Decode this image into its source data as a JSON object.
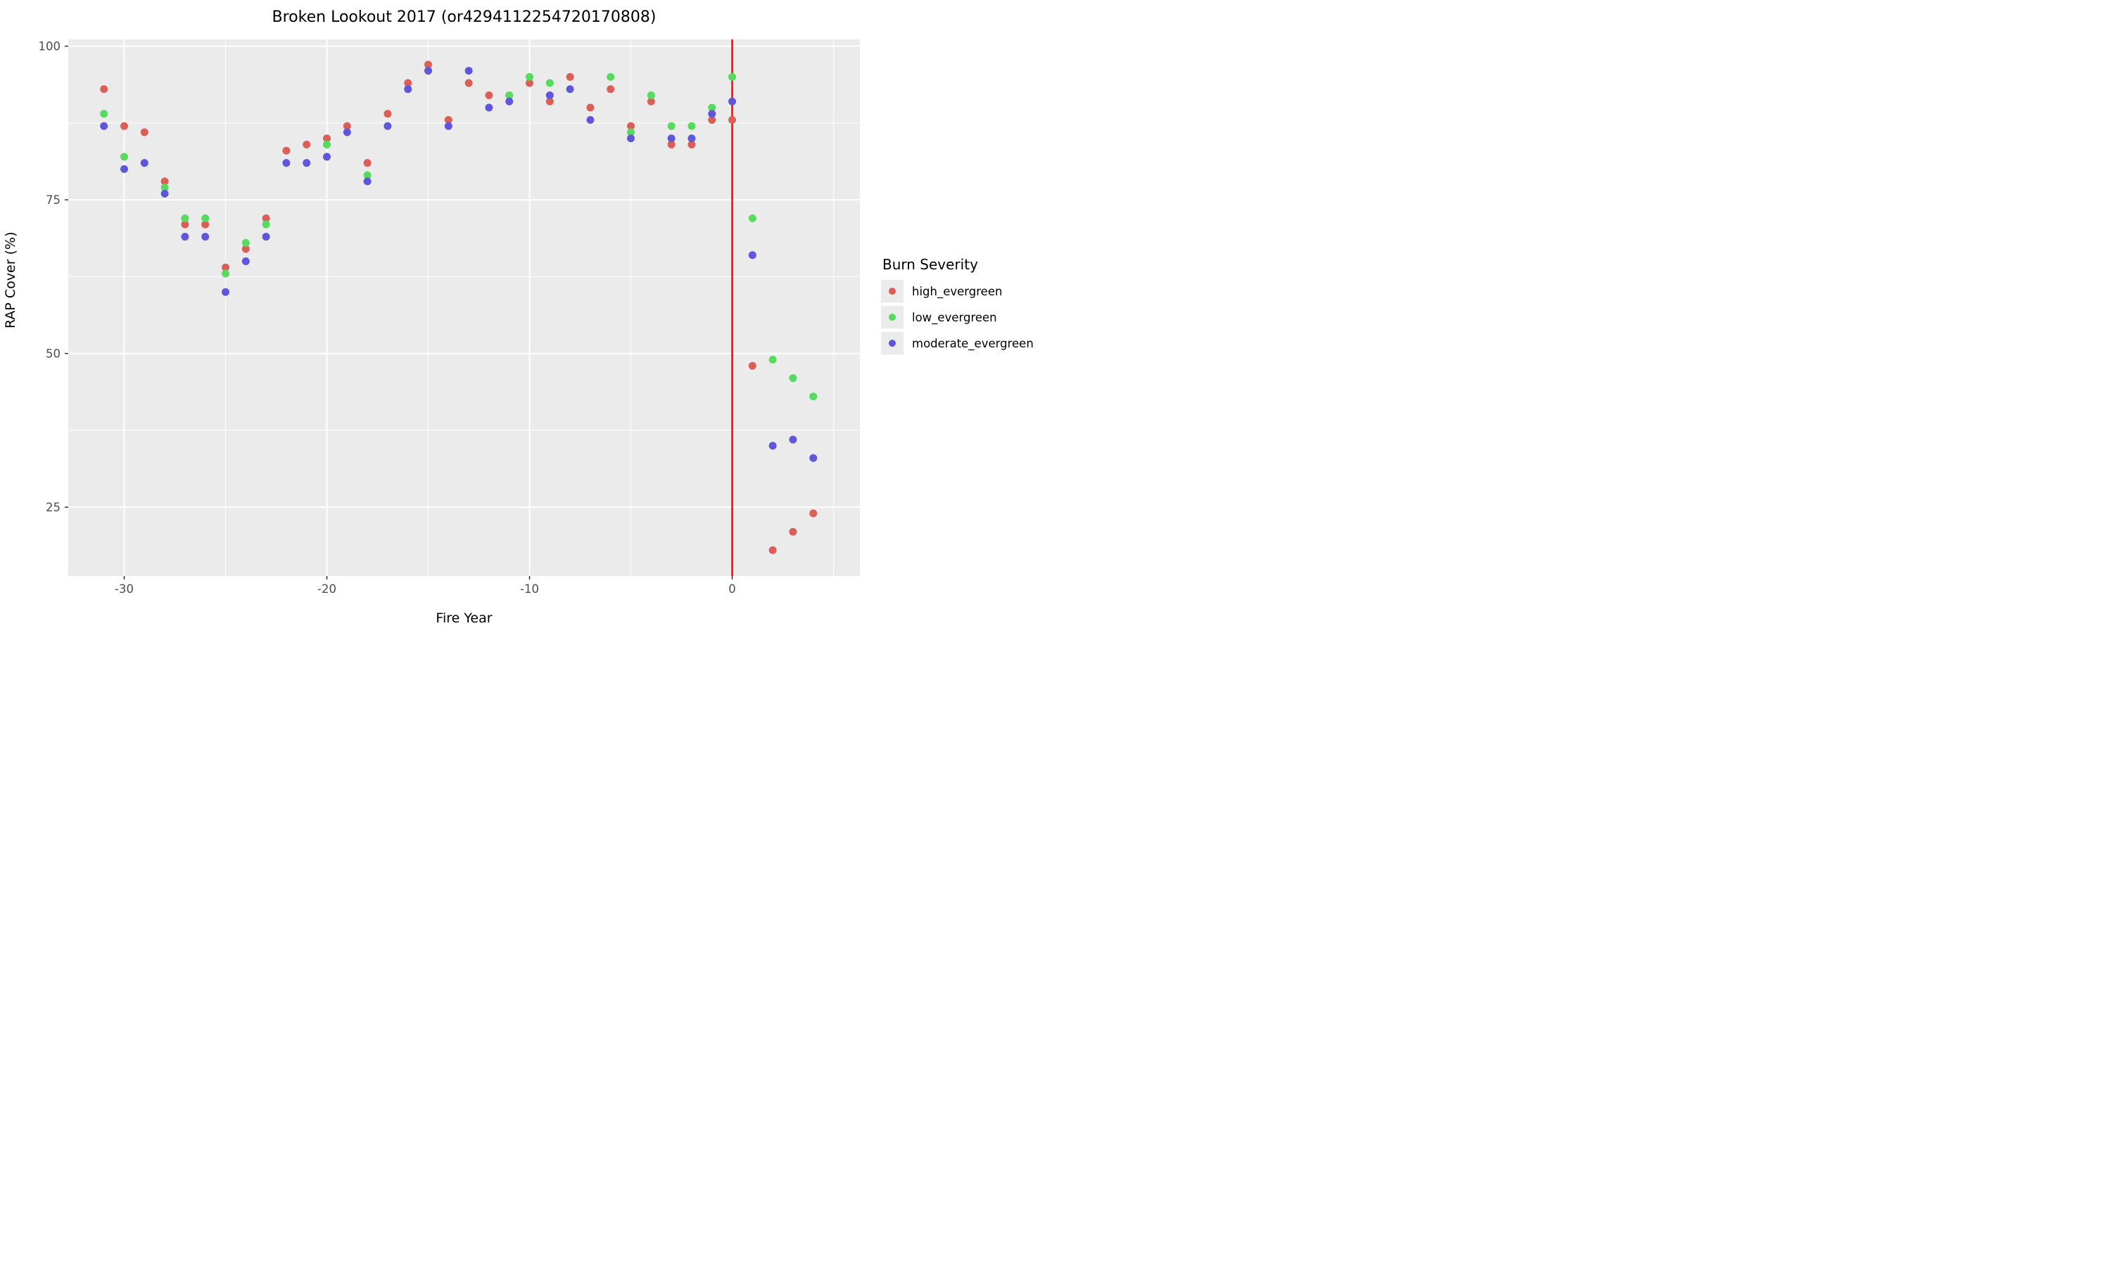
{
  "title": "Broken Lookout 2017 (or4294112254720170808)",
  "legend": {
    "title": "Burn Severity",
    "items": [
      {
        "label": "high_evergreen",
        "color": "#db5f57"
      },
      {
        "label": "low_evergreen",
        "color": "#57db5f"
      },
      {
        "label": "moderate_evergreen",
        "color": "#5f57db"
      }
    ]
  },
  "chart_data": {
    "type": "scatter",
    "title": "Broken Lookout 2017 (or4294112254720170808)",
    "xlabel": "Fire Year",
    "ylabel": "RAP Cover (%)",
    "xlim": [
      -32.76,
      6.3
    ],
    "ylim": [
      13.8,
      101.1
    ],
    "x_major_ticks": [
      -30,
      -20,
      -10,
      0
    ],
    "x_tick_labels": [
      "-30",
      "-20",
      "-10",
      "0"
    ],
    "x_minor_gridlines": [
      -25,
      -15,
      -5,
      5
    ],
    "y_major_ticks": [
      25,
      50,
      75,
      100
    ],
    "y_tick_labels": [
      "25",
      "50",
      "75",
      "100"
    ],
    "y_minor_gridlines": [
      37.5,
      62.5,
      87.5
    ],
    "grid": true,
    "legend_position": "right",
    "panel_background": "#ebebeb",
    "grid_color": "#ffffff",
    "tick_color": "#333333",
    "tick_label_color": "#4d4d4d",
    "vline": {
      "x": 0,
      "color": "#ff0000",
      "meaning": "fire year"
    },
    "series": [
      {
        "name": "high_evergreen",
        "color": "#db5f57",
        "points": [
          [
            -31,
            93
          ],
          [
            -30,
            87
          ],
          [
            -29,
            86
          ],
          [
            -28,
            78
          ],
          [
            -27,
            71
          ],
          [
            -26,
            71
          ],
          [
            -25,
            64
          ],
          [
            -24,
            67
          ],
          [
            -23,
            72
          ],
          [
            -22,
            83
          ],
          [
            -21,
            84
          ],
          [
            -20,
            85
          ],
          [
            -19,
            87
          ],
          [
            -18,
            81
          ],
          [
            -17,
            89
          ],
          [
            -16,
            94
          ],
          [
            -15,
            97
          ],
          [
            -14,
            88
          ],
          [
            -13,
            94
          ],
          [
            -12,
            92
          ],
          [
            -11,
            92
          ],
          [
            -10,
            94
          ],
          [
            -9,
            91
          ],
          [
            -8,
            95
          ],
          [
            -7,
            90
          ],
          [
            -6,
            93
          ],
          [
            -5,
            87
          ],
          [
            -4,
            91
          ],
          [
            -3,
            84
          ],
          [
            -2,
            84
          ],
          [
            -1,
            88
          ],
          [
            0,
            88
          ],
          [
            1,
            48
          ],
          [
            2,
            18
          ],
          [
            3,
            21
          ],
          [
            4,
            24
          ]
        ]
      },
      {
        "name": "low_evergreen",
        "color": "#57db5f",
        "points": [
          [
            -31,
            89
          ],
          [
            -30,
            82
          ],
          [
            -28,
            77
          ],
          [
            -27,
            72
          ],
          [
            -26,
            72
          ],
          [
            -25,
            63
          ],
          [
            -24,
            68
          ],
          [
            -23,
            71
          ],
          [
            -20,
            84
          ],
          [
            -18,
            79
          ],
          [
            -11,
            92
          ],
          [
            -10,
            95
          ],
          [
            -9,
            94
          ],
          [
            -6,
            95
          ],
          [
            -5,
            86
          ],
          [
            -4,
            92
          ],
          [
            -3,
            87
          ],
          [
            -2,
            87
          ],
          [
            -1,
            90
          ],
          [
            0,
            95
          ],
          [
            1,
            72
          ],
          [
            2,
            49
          ],
          [
            3,
            46
          ],
          [
            4,
            43
          ]
        ]
      },
      {
        "name": "moderate_evergreen",
        "color": "#5f57db",
        "points": [
          [
            -31,
            87
          ],
          [
            -30,
            80
          ],
          [
            -29,
            81
          ],
          [
            -28,
            76
          ],
          [
            -27,
            69
          ],
          [
            -26,
            69
          ],
          [
            -25,
            60
          ],
          [
            -24,
            65
          ],
          [
            -23,
            69
          ],
          [
            -22,
            81
          ],
          [
            -21,
            81
          ],
          [
            -20,
            82
          ],
          [
            -19,
            86
          ],
          [
            -18,
            78
          ],
          [
            -17,
            87
          ],
          [
            -16,
            93
          ],
          [
            -15,
            96
          ],
          [
            -14,
            87
          ],
          [
            -13,
            96
          ],
          [
            -12,
            90
          ],
          [
            -11,
            91
          ],
          [
            -9,
            92
          ],
          [
            -8,
            93
          ],
          [
            -7,
            88
          ],
          [
            -5,
            85
          ],
          [
            -3,
            85
          ],
          [
            -2,
            85
          ],
          [
            -1,
            89
          ],
          [
            0,
            91
          ],
          [
            1,
            66
          ],
          [
            2,
            35
          ],
          [
            3,
            36
          ],
          [
            4,
            33
          ]
        ]
      }
    ]
  }
}
